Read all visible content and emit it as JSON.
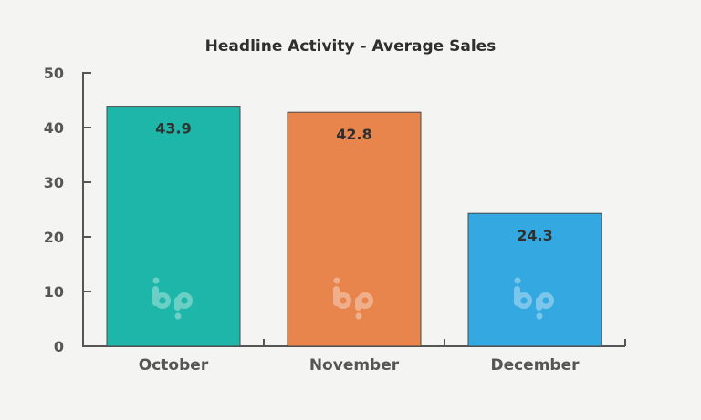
{
  "chart_data": {
    "type": "bar",
    "title": "Headline Activity - Average Sales",
    "xlabel": "",
    "ylabel": "",
    "categories": [
      "October",
      "November",
      "December"
    ],
    "values": [
      43.9,
      42.8,
      24.3
    ],
    "value_labels": [
      "43.9",
      "42.8",
      "24.3"
    ],
    "colors": [
      "#1db6a8",
      "#e8854d",
      "#34a8e0"
    ],
    "ylim": [
      0,
      50
    ],
    "yticks": [
      0,
      10,
      20,
      30,
      40,
      50
    ],
    "ytick_labels": [
      "0",
      "10",
      "20",
      "30",
      "40",
      "50"
    ],
    "grid": false,
    "legend": "none",
    "watermark_icon": "bp-logo-icon"
  }
}
